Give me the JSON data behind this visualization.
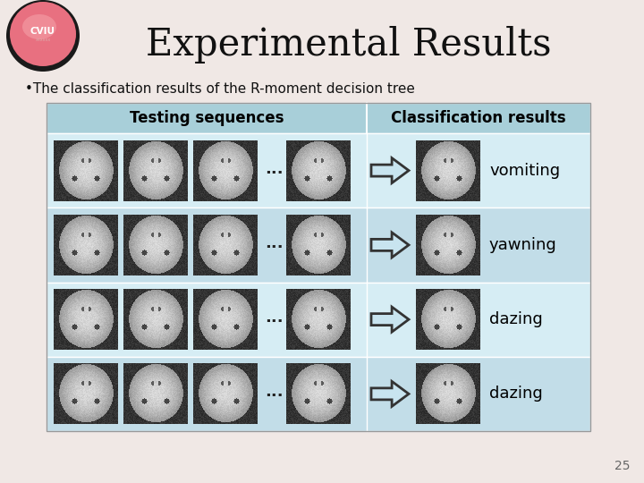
{
  "title": "Experimental Results",
  "subtitle": "•The classification results of the R-moment decision tree",
  "col1_header": "Testing sequences",
  "col2_header": "Classification results",
  "rows": [
    {
      "label": "vomiting"
    },
    {
      "label": "yawning"
    },
    {
      "label": "dazing"
    },
    {
      "label": "dazing"
    }
  ],
  "bg_color": "#f0e8e5",
  "table_bg_light": "#d6edf4",
  "table_bg_dark": "#c2dde8",
  "header_bg": "#a8cfd9",
  "title_color": "#111111",
  "subtitle_color": "#111111",
  "header_text_color": "#000000",
  "label_color": "#000000",
  "number_color": "#666666",
  "slide_number": "25",
  "title_fontsize": 30,
  "subtitle_fontsize": 11,
  "header_fontsize": 12,
  "label_fontsize": 13,
  "arrow_fill": "#c8e4ef",
  "arrow_edge": "#333333"
}
